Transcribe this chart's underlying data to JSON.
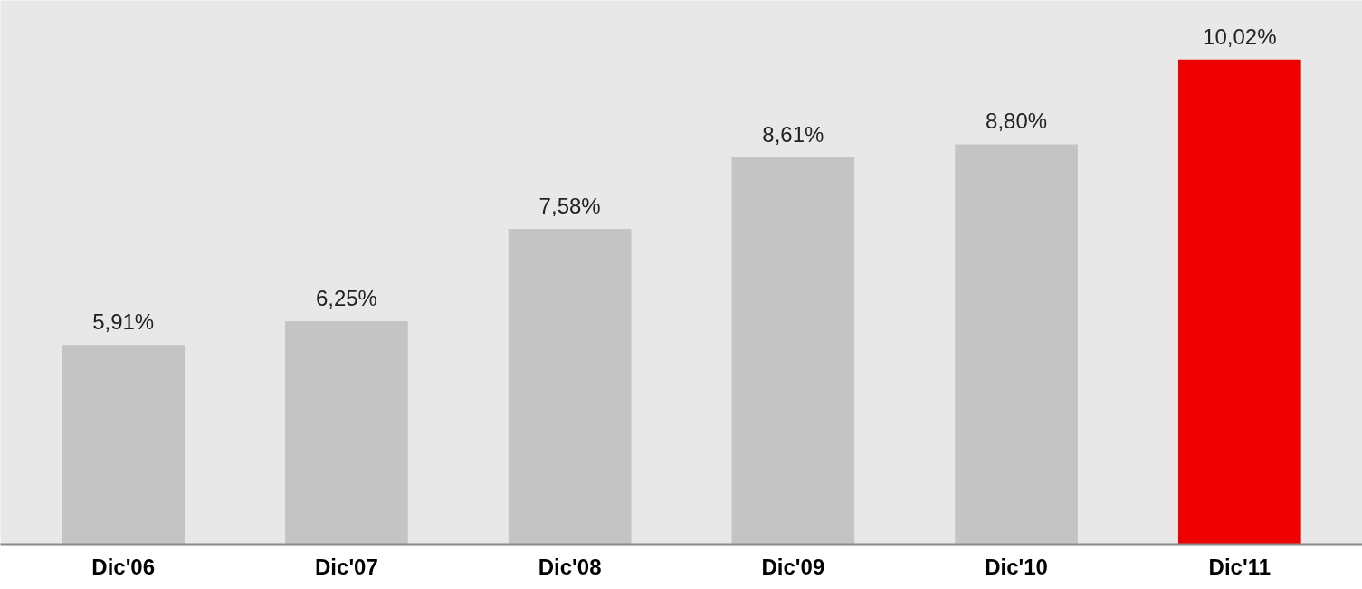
{
  "chart_data": {
    "type": "bar",
    "categories": [
      "Dic'06",
      "Dic'07",
      "Dic'08",
      "Dic'09",
      "Dic'10",
      "Dic'11"
    ],
    "values": [
      5.91,
      6.25,
      7.58,
      8.61,
      8.8,
      10.02
    ],
    "colors": [
      "#c4c4c4",
      "#c4c4c4",
      "#c4c4c4",
      "#c4c4c4",
      "#c4c4c4",
      "#ee0000"
    ],
    "value_labels": [
      "5,91%",
      "6,25%",
      "7,58%",
      "8,61%",
      "8,80%",
      "10,02%"
    ],
    "ylim": [
      3.04,
      10.87
    ]
  }
}
